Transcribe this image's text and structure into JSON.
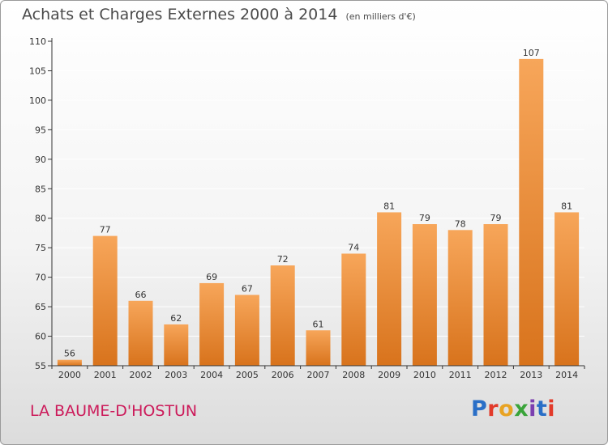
{
  "title": "Achats et Charges Externes 2000 à 2014",
  "subtitle": "(en milliers d'€)",
  "commune": "LA BAUME-D'HOSTUN",
  "logo": {
    "text": "Proxiti",
    "letter_colors": [
      "#2a6fc7",
      "#e23a2a",
      "#e8a323",
      "#3aa43a",
      "#7b3fb0",
      "#2a6fc7",
      "#e23a2a"
    ]
  },
  "colors": {
    "bar_top": "#f7a65a",
    "bar_bottom": "#d8731c",
    "axis": "#333333",
    "grid": "#ffffff"
  },
  "chart_data": {
    "type": "bar",
    "categories": [
      "2000",
      "2001",
      "2002",
      "2003",
      "2004",
      "2005",
      "2006",
      "2007",
      "2008",
      "2009",
      "2010",
      "2011",
      "2012",
      "2013",
      "2014"
    ],
    "values": [
      56,
      77,
      66,
      62,
      69,
      67,
      72,
      61,
      74,
      81,
      79,
      78,
      79,
      107,
      81
    ],
    "value_labels": [
      "56",
      "77",
      "66",
      "62",
      "69",
      "67",
      "72",
      "61",
      "74",
      "81",
      "79",
      "78",
      "79",
      "107",
      "81"
    ],
    "title": "Achats et Charges Externes 2000 à 2014",
    "ylim": [
      55,
      110
    ],
    "yticks": [
      "55",
      "60",
      "65",
      "70",
      "75",
      "80",
      "85",
      "90",
      "95",
      "100",
      "105",
      "110"
    ],
    "grid": true
  }
}
